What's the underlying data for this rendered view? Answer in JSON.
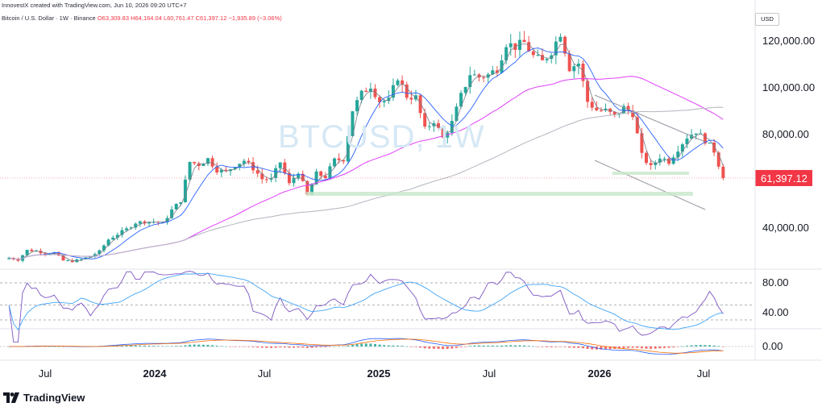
{
  "header": {
    "created_by": "InnovestX created with TradingView.com, Jun 10, 2026 09:20 UTC+7",
    "symbol_line": "Bitcoin / U.S. Dollar · 1W · Binance",
    "ohlc": "O63,309.83 H64,164.04 L60,761.47 C61,397.12 −1,935.89 (−3.06%)"
  },
  "currency_button": "USD",
  "watermark": "BTCUSD, 1W",
  "price_axis": {
    "labels": [
      "120,000.00",
      "100,000.00",
      "80,000.00",
      "40,000.00"
    ],
    "last_price": "61,397.12"
  },
  "rsi_axis": {
    "labels": [
      "80.00",
      "40.00"
    ]
  },
  "macd_axis": {
    "labels": [
      "0.00"
    ]
  },
  "time_axis": [
    {
      "text": "Jul",
      "bold": false
    },
    {
      "text": "2024",
      "bold": true
    },
    {
      "text": "Jul",
      "bold": false
    },
    {
      "text": "2025",
      "bold": true
    },
    {
      "text": "Jul",
      "bold": false
    },
    {
      "text": "2026",
      "bold": true
    },
    {
      "text": "Jul",
      "bold": false
    }
  ],
  "brand": "TradingView",
  "colors": {
    "up": "#26a69a",
    "down": "#ef5350",
    "ma_fast": "#787b86",
    "ma_mid": "#2962ff",
    "ma_slow": "#e040fb",
    "ma_long": "#b2b5be",
    "rsi": "#7e57c2",
    "price_tag": "#f23645"
  },
  "chart_data": {
    "type": "candlestick",
    "timeframe": "1W",
    "symbol": "BTCUSD",
    "ylim": [
      15000,
      130000
    ],
    "close_series": [
      [
        "2023-05-29",
        27200
      ],
      [
        "2023-06-12",
        26400
      ],
      [
        "2023-06-26",
        30500
      ],
      [
        "2023-07-10",
        30200
      ],
      [
        "2023-07-24",
        29200
      ],
      [
        "2023-08-07",
        29400
      ],
      [
        "2023-08-21",
        26100
      ],
      [
        "2023-09-04",
        25800
      ],
      [
        "2023-09-18",
        26600
      ],
      [
        "2023-10-02",
        27900
      ],
      [
        "2023-10-16",
        30000
      ],
      [
        "2023-10-30",
        35100
      ],
      [
        "2023-11-13",
        37400
      ],
      [
        "2023-11-27",
        39500
      ],
      [
        "2023-12-11",
        42300
      ],
      [
        "2023-12-25",
        42700
      ],
      [
        "2024-01-08",
        42800
      ],
      [
        "2024-01-22",
        41900
      ],
      [
        "2024-02-05",
        47700
      ],
      [
        "2024-02-19",
        51800
      ],
      [
        "2024-03-04",
        68300
      ],
      [
        "2024-03-18",
        67200
      ],
      [
        "2024-04-01",
        69600
      ],
      [
        "2024-04-15",
        64900
      ],
      [
        "2024-04-29",
        63900
      ],
      [
        "2024-05-13",
        67000
      ],
      [
        "2024-05-27",
        68900
      ],
      [
        "2024-06-10",
        65600
      ],
      [
        "2024-06-24",
        61000
      ],
      [
        "2024-07-08",
        60800
      ],
      [
        "2024-07-22",
        68200
      ],
      [
        "2024-08-05",
        58700
      ],
      [
        "2024-08-19",
        64200
      ],
      [
        "2024-09-02",
        54000
      ],
      [
        "2024-09-16",
        63200
      ],
      [
        "2024-09-30",
        62000
      ],
      [
        "2024-10-14",
        69000
      ],
      [
        "2024-10-28",
        69500
      ],
      [
        "2024-11-11",
        90500
      ],
      [
        "2024-11-25",
        97400
      ],
      [
        "2024-12-09",
        101000
      ],
      [
        "2024-12-23",
        94300
      ],
      [
        "2025-01-06",
        94500
      ],
      [
        "2025-01-20",
        104700
      ],
      [
        "2025-02-03",
        96500
      ],
      [
        "2025-02-17",
        95800
      ],
      [
        "2025-03-03",
        82100
      ],
      [
        "2025-03-17",
        86000
      ],
      [
        "2025-03-31",
        78400
      ],
      [
        "2025-04-14",
        85100
      ],
      [
        "2025-04-28",
        96500
      ],
      [
        "2025-05-12",
        106000
      ],
      [
        "2025-05-26",
        104600
      ],
      [
        "2025-06-09",
        105500
      ],
      [
        "2025-06-23",
        108300
      ],
      [
        "2025-07-07",
        119100
      ],
      [
        "2025-07-21",
        117600
      ],
      [
        "2025-08-04",
        119300
      ],
      [
        "2025-08-18",
        113500
      ],
      [
        "2025-09-01",
        111100
      ],
      [
        "2025-09-15",
        115700
      ],
      [
        "2025-09-29",
        123600
      ],
      [
        "2025-10-13",
        108600
      ],
      [
        "2025-10-27",
        110500
      ],
      [
        "2025-11-10",
        94100
      ],
      [
        "2025-11-24",
        90500
      ],
      [
        "2025-12-08",
        90200
      ],
      [
        "2025-12-22",
        87800
      ],
      [
        "2026-01-05",
        91500
      ],
      [
        "2026-01-19",
        89000
      ],
      [
        "2026-02-02",
        71000
      ],
      [
        "2026-02-16",
        66000
      ],
      [
        "2026-03-02",
        70500
      ],
      [
        "2026-03-16",
        68500
      ],
      [
        "2026-03-30",
        74000
      ],
      [
        "2026-04-13",
        79000
      ],
      [
        "2026-04-27",
        81500
      ],
      [
        "2026-05-11",
        77500
      ],
      [
        "2026-05-25",
        73000
      ],
      [
        "2026-06-08",
        61397
      ]
    ],
    "last_close": 61397.12
  }
}
